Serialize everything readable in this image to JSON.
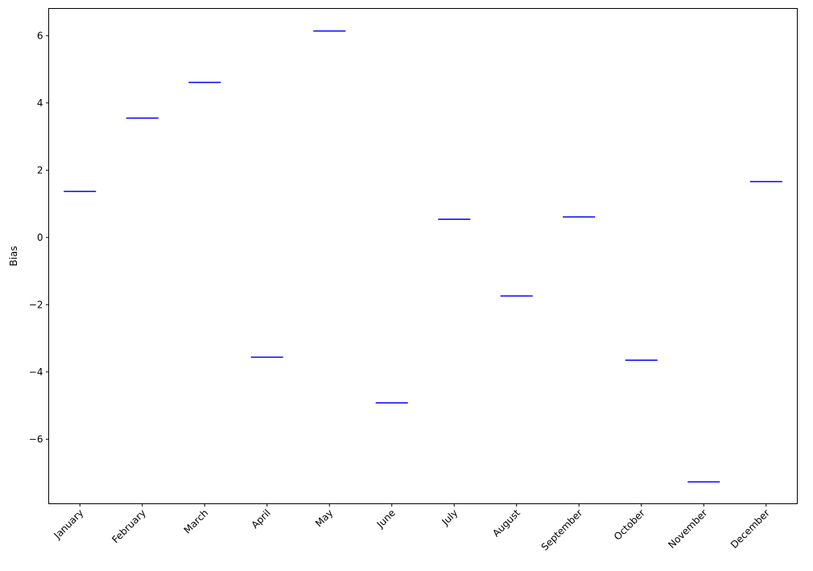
{
  "chart_data": {
    "type": "boxplot",
    "title": "",
    "xlabel": "",
    "ylabel": "Bias",
    "categories": [
      "January",
      "February",
      "March",
      "April",
      "May",
      "June",
      "July",
      "August",
      "September",
      "October",
      "November",
      "December"
    ],
    "values": [
      1.37,
      3.55,
      4.61,
      -3.56,
      6.14,
      -4.92,
      0.54,
      -1.74,
      0.61,
      -3.65,
      -7.27,
      1.66
    ],
    "ylim": [
      -7.92,
      6.81
    ],
    "yticks": [
      -6,
      -4,
      -2,
      0,
      2,
      4,
      6
    ],
    "ytick_labels": [
      "−6",
      "−4",
      "−2",
      "0",
      "2",
      "4",
      "6"
    ],
    "grid": false,
    "box_color": "#0000ff",
    "xtick_rotation": 45
  }
}
